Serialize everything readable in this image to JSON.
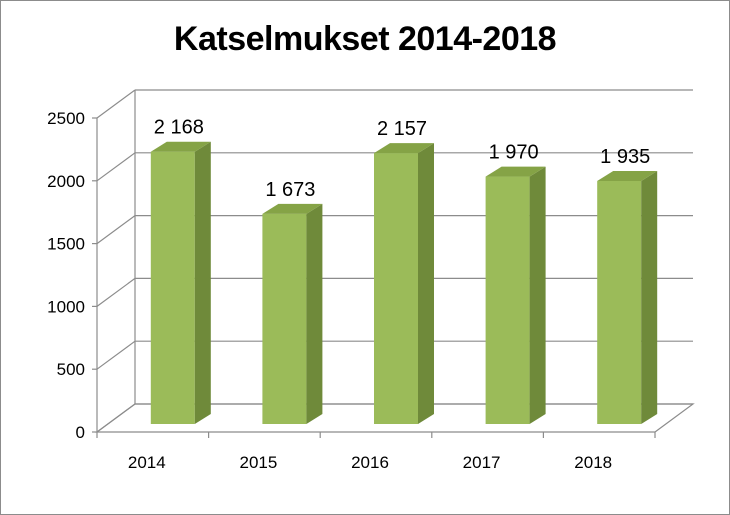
{
  "chart_data": {
    "type": "bar",
    "title": "Katselmukset 2014-2018",
    "categories": [
      "2014",
      "2015",
      "2016",
      "2017",
      "2018"
    ],
    "values": [
      2168,
      1673,
      2157,
      1970,
      1935
    ],
    "data_labels": [
      "2 168",
      "1 673",
      "2 157",
      "1 970",
      "1 935"
    ],
    "y_ticks": [
      "0",
      "500",
      "1000",
      "1500",
      "2000",
      "2500"
    ],
    "ylim": [
      0,
      2500
    ],
    "grid": true,
    "legend": "none",
    "style": "3d-column",
    "colors": {
      "bar_front": "#9bbb59",
      "bar_side": "#6f8a3a",
      "bar_top": "#85a346",
      "grid": "#8c8c8c",
      "wall": "#ffffff"
    }
  }
}
